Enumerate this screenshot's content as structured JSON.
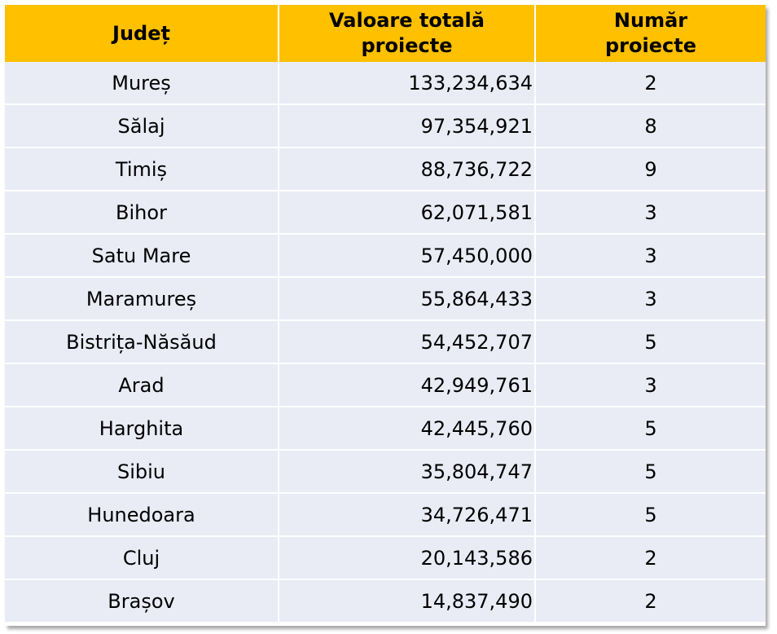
{
  "table": {
    "headers": {
      "county": "Județ",
      "total_value_line1": "Valoare totală",
      "total_value_line2": "proiecte",
      "count_line1": "Număr",
      "count_line2": "proiecte"
    },
    "rows": [
      {
        "county": "Mureș",
        "total_value": "133,234,634",
        "count": "2"
      },
      {
        "county": "Sălaj",
        "total_value": "97,354,921",
        "count": "8"
      },
      {
        "county": "Timiș",
        "total_value": "88,736,722",
        "count": "9"
      },
      {
        "county": "Bihor",
        "total_value": "62,071,581",
        "count": "3"
      },
      {
        "county": "Satu Mare",
        "total_value": "57,450,000",
        "count": "3"
      },
      {
        "county": "Maramureș",
        "total_value": "55,864,433",
        "count": "3"
      },
      {
        "county": "Bistrița-Năsăud",
        "total_value": "54,452,707",
        "count": "5"
      },
      {
        "county": "Arad",
        "total_value": "42,949,761",
        "count": "3"
      },
      {
        "county": "Harghita",
        "total_value": "42,445,760",
        "count": "5"
      },
      {
        "county": "Sibiu",
        "total_value": "35,804,747",
        "count": "5"
      },
      {
        "county": "Hunedoara",
        "total_value": "34,726,471",
        "count": "5"
      },
      {
        "county": "Cluj",
        "total_value": "20,143,586",
        "count": "2"
      },
      {
        "county": "Brașov",
        "total_value": "14,837,490",
        "count": "2"
      }
    ],
    "colors": {
      "header_bg": "#ffc000",
      "row_bg": "#e9ebf5"
    }
  }
}
